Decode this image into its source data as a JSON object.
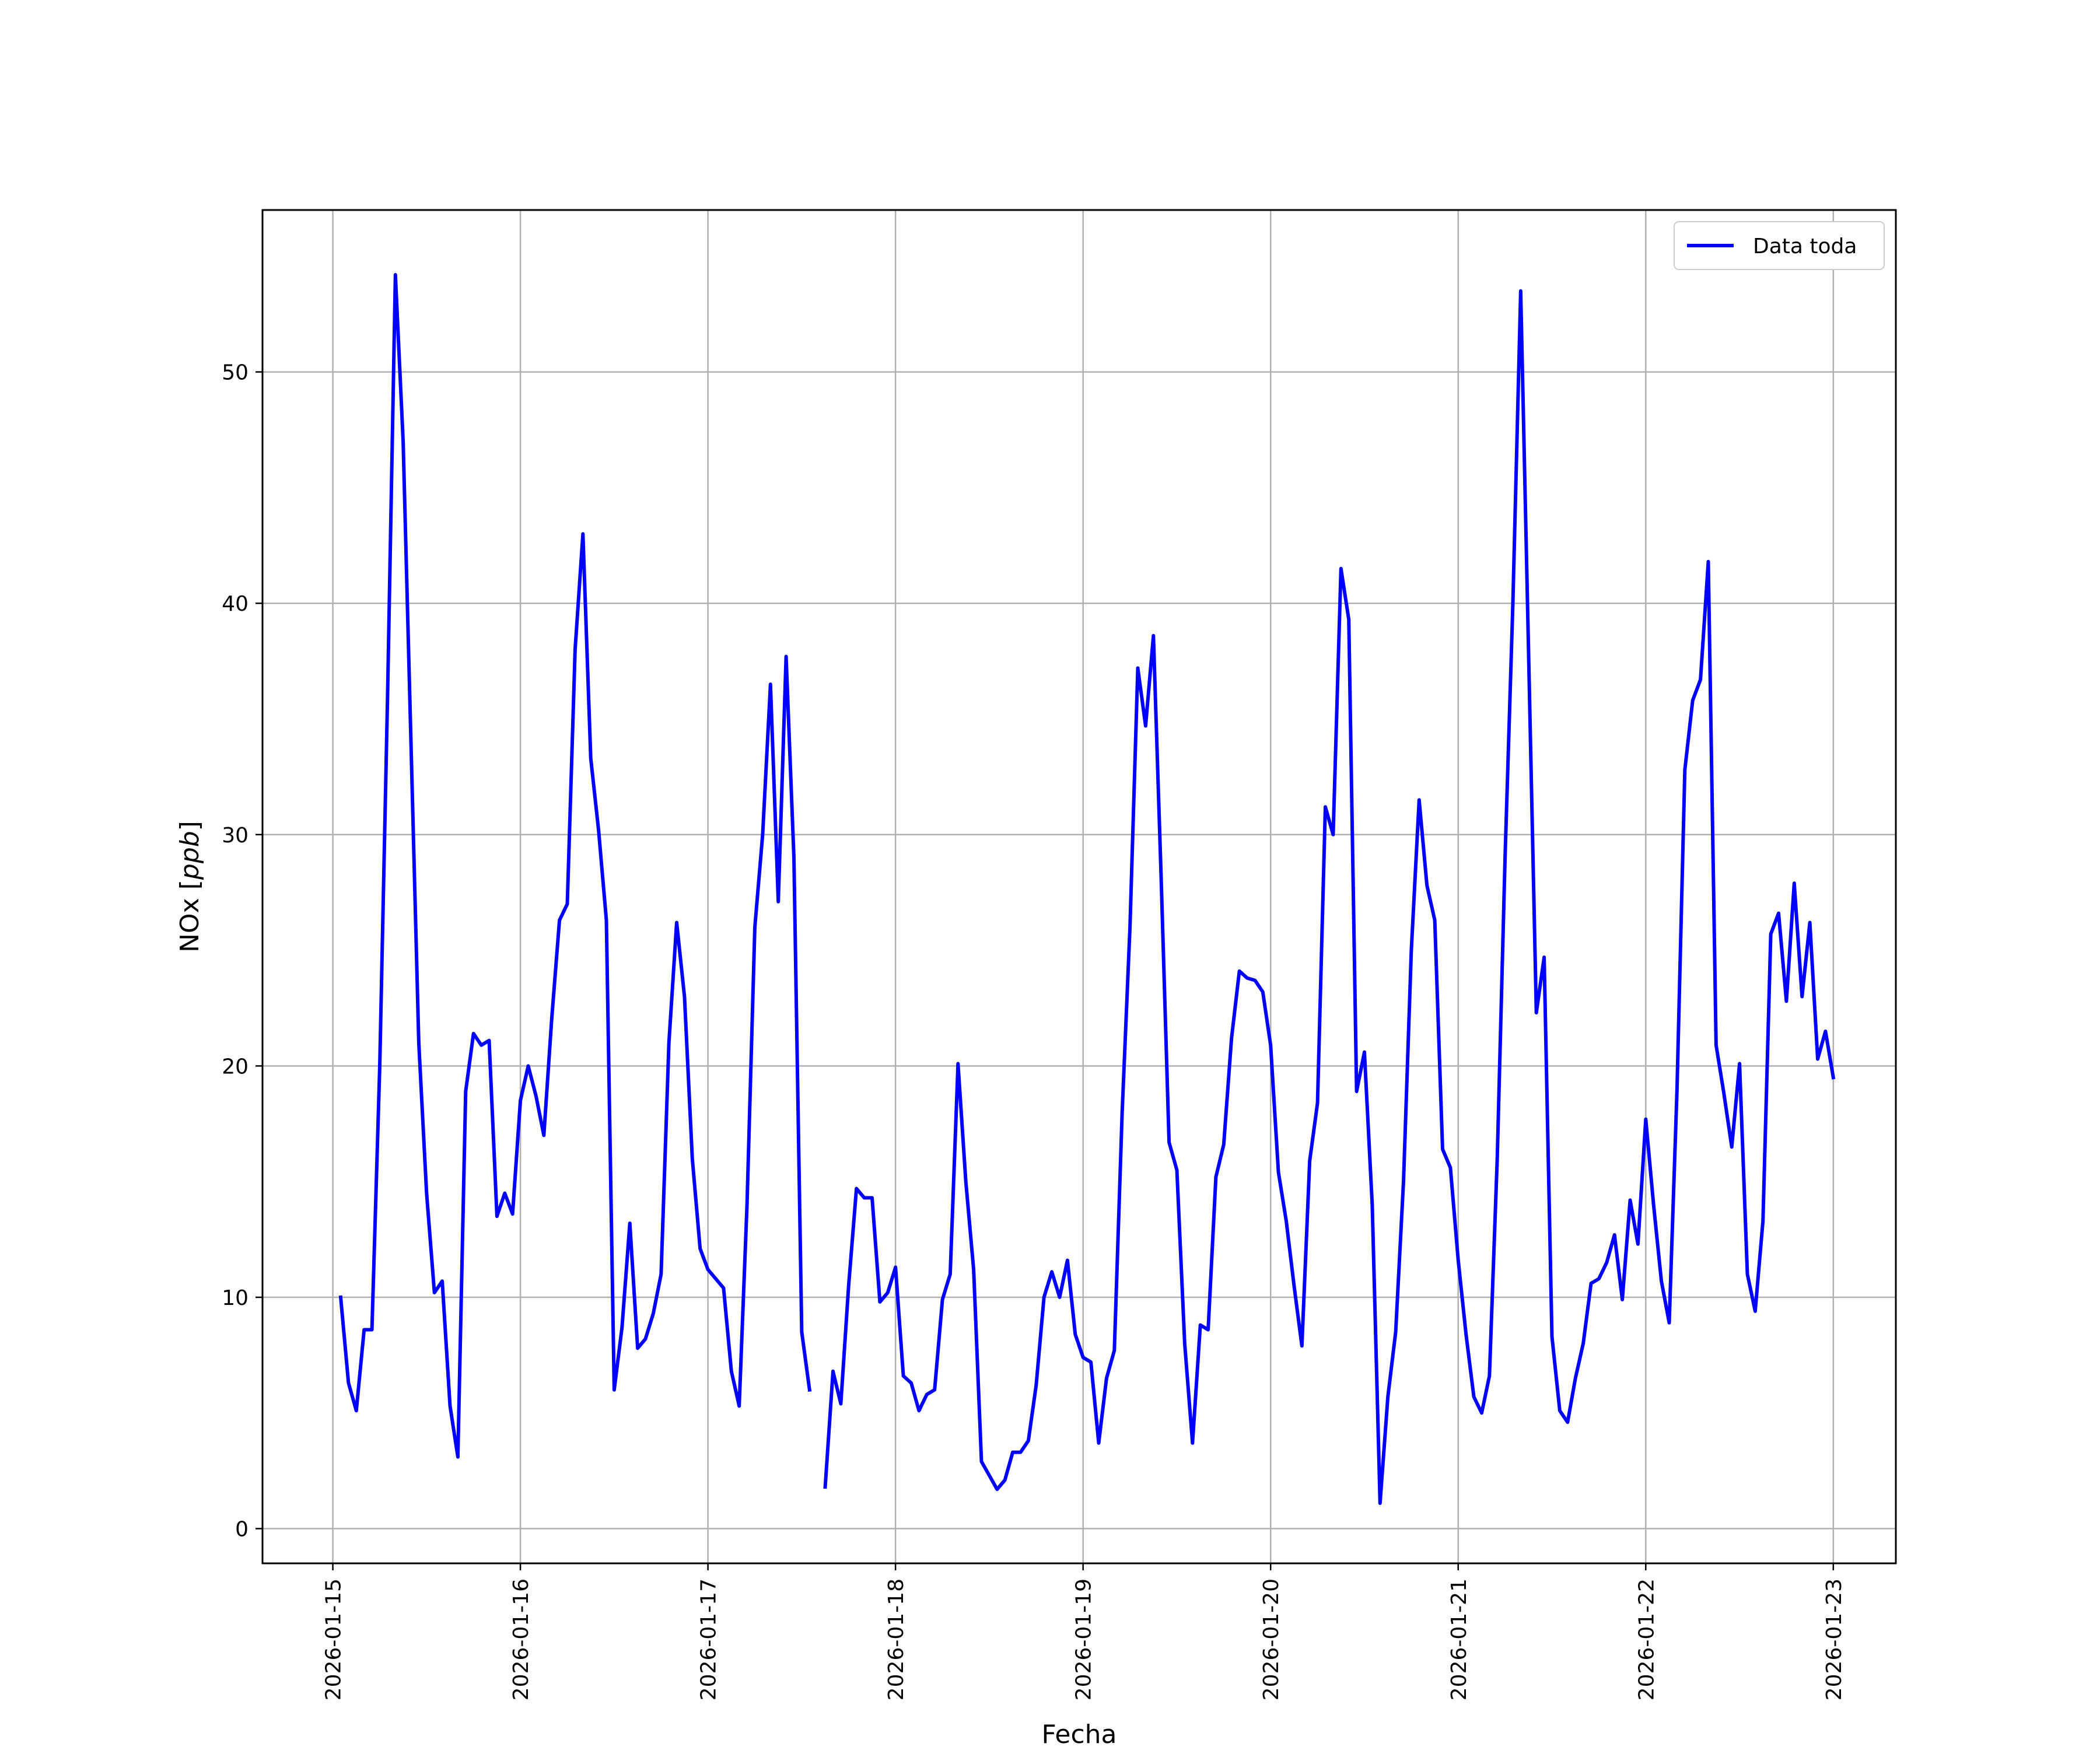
{
  "chart_data": {
    "type": "line",
    "title": "",
    "xlabel": "Fecha",
    "ylabel": "NOx [ppb]",
    "ylabel_parts": {
      "plain": "NOx [",
      "italic": "ppb",
      "close": "]"
    },
    "grid": true,
    "legend_position": "top-right",
    "xlim": [
      "2026-01-14 15:00",
      "2026-01-23 08:00"
    ],
    "ylim": [
      -1.5,
      57
    ],
    "x_ticks": [
      "2026-01-15",
      "2026-01-16",
      "2026-01-17",
      "2026-01-18",
      "2026-01-19",
      "2026-01-20",
      "2026-01-21",
      "2026-01-22",
      "2026-01-23"
    ],
    "y_ticks": [
      "0",
      "10",
      "20",
      "30",
      "40",
      "50"
    ],
    "series": [
      {
        "name": "Data toda",
        "color": "#0000ff",
        "points": [
          [
            "2026-01-15 01:00",
            10.0
          ],
          [
            "2026-01-15 02:00",
            6.3
          ],
          [
            "2026-01-15 03:00",
            5.1
          ],
          [
            "2026-01-15 04:00",
            8.6
          ],
          [
            "2026-01-15 05:00",
            8.6
          ],
          [
            "2026-01-15 06:00",
            20.0
          ],
          [
            "2026-01-15 07:00",
            36.0
          ],
          [
            "2026-01-15 08:00",
            54.2
          ],
          [
            "2026-01-15 09:00",
            47.0
          ],
          [
            "2026-01-15 10:00",
            34.0
          ],
          [
            "2026-01-15 11:00",
            21.0
          ],
          [
            "2026-01-15 12:00",
            14.5
          ],
          [
            "2026-01-15 13:00",
            10.2
          ],
          [
            "2026-01-15 14:00",
            10.7
          ],
          [
            "2026-01-15 15:00",
            5.3
          ],
          [
            "2026-01-15 16:00",
            3.1
          ],
          [
            "2026-01-15 17:00",
            18.9
          ],
          [
            "2026-01-15 18:00",
            21.4
          ],
          [
            "2026-01-15 19:00",
            20.9
          ],
          [
            "2026-01-15 20:00",
            21.1
          ],
          [
            "2026-01-15 21:00",
            13.5
          ],
          [
            "2026-01-15 22:00",
            14.5
          ],
          [
            "2026-01-15 23:00",
            13.6
          ],
          [
            "2026-01-16 00:00",
            18.5
          ],
          [
            "2026-01-16 01:00",
            20.0
          ],
          [
            "2026-01-16 02:00",
            18.7
          ],
          [
            "2026-01-16 03:00",
            17.0
          ],
          [
            "2026-01-16 04:00",
            22.0
          ],
          [
            "2026-01-16 05:00",
            26.3
          ],
          [
            "2026-01-16 06:00",
            27.0
          ],
          [
            "2026-01-16 07:00",
            38.0
          ],
          [
            "2026-01-16 08:00",
            43.0
          ],
          [
            "2026-01-16 09:00",
            33.3
          ],
          [
            "2026-01-16 10:00",
            30.2
          ],
          [
            "2026-01-16 11:00",
            26.3
          ],
          [
            "2026-01-16 12:00",
            6.0
          ],
          [
            "2026-01-16 13:00",
            8.7
          ],
          [
            "2026-01-16 14:00",
            13.2
          ],
          [
            "2026-01-16 15:00",
            7.8
          ],
          [
            "2026-01-16 16:00",
            8.2
          ],
          [
            "2026-01-16 17:00",
            9.3
          ],
          [
            "2026-01-16 18:00",
            11.0
          ],
          [
            "2026-01-16 19:00",
            21.0
          ],
          [
            "2026-01-16 20:00",
            26.2
          ],
          [
            "2026-01-16 21:00",
            23.0
          ],
          [
            "2026-01-16 22:00",
            16.0
          ],
          [
            "2026-01-16 23:00",
            12.1
          ],
          [
            "2026-01-17 00:00",
            11.2
          ],
          [
            "2026-01-17 01:00",
            10.8
          ],
          [
            "2026-01-17 02:00",
            10.4
          ],
          [
            "2026-01-17 03:00",
            6.8
          ],
          [
            "2026-01-17 04:00",
            5.3
          ],
          [
            "2026-01-17 05:00",
            14.0
          ],
          [
            "2026-01-17 06:00",
            26.0
          ],
          [
            "2026-01-17 07:00",
            30.0
          ],
          [
            "2026-01-17 08:00",
            36.5
          ],
          [
            "2026-01-17 09:00",
            27.1
          ],
          [
            "2026-01-17 10:00",
            37.7
          ],
          [
            "2026-01-17 11:00",
            29.0
          ],
          [
            "2026-01-17 12:00",
            8.5
          ],
          [
            "2026-01-17 13:00",
            6.0
          ],
          [
            "2026-01-17 14:00",
            null
          ],
          [
            "2026-01-17 15:00",
            1.8
          ],
          [
            "2026-01-17 16:00",
            6.8
          ],
          [
            "2026-01-17 17:00",
            5.4
          ],
          [
            "2026-01-17 18:00",
            10.5
          ],
          [
            "2026-01-17 19:00",
            14.7
          ],
          [
            "2026-01-17 20:00",
            14.3
          ],
          [
            "2026-01-17 21:00",
            14.3
          ],
          [
            "2026-01-17 22:00",
            9.8
          ],
          [
            "2026-01-17 23:00",
            10.2
          ],
          [
            "2026-01-18 00:00",
            11.3
          ],
          [
            "2026-01-18 01:00",
            6.6
          ],
          [
            "2026-01-18 02:00",
            6.3
          ],
          [
            "2026-01-18 03:00",
            5.1
          ],
          [
            "2026-01-18 04:00",
            5.8
          ],
          [
            "2026-01-18 05:00",
            6.0
          ],
          [
            "2026-01-18 06:00",
            9.9
          ],
          [
            "2026-01-18 07:00",
            11.0
          ],
          [
            "2026-01-18 08:00",
            20.1
          ],
          [
            "2026-01-18 09:00",
            15.0
          ],
          [
            "2026-01-18 10:00",
            11.2
          ],
          [
            "2026-01-18 11:00",
            2.9
          ],
          [
            "2026-01-18 12:00",
            2.3
          ],
          [
            "2026-01-18 13:00",
            1.7
          ],
          [
            "2026-01-18 14:00",
            2.1
          ],
          [
            "2026-01-18 15:00",
            3.3
          ],
          [
            "2026-01-18 16:00",
            3.3
          ],
          [
            "2026-01-18 17:00",
            3.8
          ],
          [
            "2026-01-18 18:00",
            6.2
          ],
          [
            "2026-01-18 19:00",
            10.0
          ],
          [
            "2026-01-18 20:00",
            11.1
          ],
          [
            "2026-01-18 21:00",
            10.0
          ],
          [
            "2026-01-18 22:00",
            11.6
          ],
          [
            "2026-01-18 23:00",
            8.4
          ],
          [
            "2026-01-19 00:00",
            7.4
          ],
          [
            "2026-01-19 01:00",
            7.2
          ],
          [
            "2026-01-19 02:00",
            3.7
          ],
          [
            "2026-01-19 03:00",
            6.5
          ],
          [
            "2026-01-19 04:00",
            7.7
          ],
          [
            "2026-01-19 05:00",
            18.0
          ],
          [
            "2026-01-19 06:00",
            26.0
          ],
          [
            "2026-01-19 07:00",
            37.2
          ],
          [
            "2026-01-19 08:00",
            34.7
          ],
          [
            "2026-01-19 09:00",
            38.6
          ],
          [
            "2026-01-19 10:00",
            28.0
          ],
          [
            "2026-01-19 11:00",
            16.7
          ],
          [
            "2026-01-19 12:00",
            15.5
          ],
          [
            "2026-01-19 13:00",
            8.0
          ],
          [
            "2026-01-19 14:00",
            3.7
          ],
          [
            "2026-01-19 15:00",
            8.8
          ],
          [
            "2026-01-19 16:00",
            8.6
          ],
          [
            "2026-01-19 17:00",
            15.2
          ],
          [
            "2026-01-19 18:00",
            16.6
          ],
          [
            "2026-01-19 19:00",
            21.2
          ],
          [
            "2026-01-19 20:00",
            24.1
          ],
          [
            "2026-01-19 21:00",
            23.8
          ],
          [
            "2026-01-19 22:00",
            23.7
          ],
          [
            "2026-01-19 23:00",
            23.2
          ],
          [
            "2026-01-20 00:00",
            20.9
          ],
          [
            "2026-01-20 01:00",
            15.4
          ],
          [
            "2026-01-20 02:00",
            13.3
          ],
          [
            "2026-01-20 03:00",
            10.5
          ],
          [
            "2026-01-20 04:00",
            7.9
          ],
          [
            "2026-01-20 05:00",
            15.9
          ],
          [
            "2026-01-20 06:00",
            18.4
          ],
          [
            "2026-01-20 07:00",
            31.2
          ],
          [
            "2026-01-20 08:00",
            30.0
          ],
          [
            "2026-01-20 09:00",
            41.5
          ],
          [
            "2026-01-20 10:00",
            39.3
          ],
          [
            "2026-01-20 11:00",
            18.9
          ],
          [
            "2026-01-20 12:00",
            20.6
          ],
          [
            "2026-01-20 13:00",
            14.0
          ],
          [
            "2026-01-20 14:00",
            1.1
          ],
          [
            "2026-01-20 15:00",
            5.7
          ],
          [
            "2026-01-20 16:00",
            8.5
          ],
          [
            "2026-01-20 17:00",
            15.0
          ],
          [
            "2026-01-20 18:00",
            25.0
          ],
          [
            "2026-01-20 19:00",
            31.5
          ],
          [
            "2026-01-20 20:00",
            27.8
          ],
          [
            "2026-01-20 21:00",
            26.3
          ],
          [
            "2026-01-20 22:00",
            16.4
          ],
          [
            "2026-01-20 23:00",
            15.6
          ],
          [
            "2026-01-21 00:00",
            11.6
          ],
          [
            "2026-01-21 01:00",
            8.4
          ],
          [
            "2026-01-21 02:00",
            5.7
          ],
          [
            "2026-01-21 03:00",
            5.0
          ],
          [
            "2026-01-21 04:00",
            6.6
          ],
          [
            "2026-01-21 05:00",
            16.0
          ],
          [
            "2026-01-21 06:00",
            29.0
          ],
          [
            "2026-01-21 07:00",
            40.0
          ],
          [
            "2026-01-21 08:00",
            53.5
          ],
          [
            "2026-01-21 09:00",
            38.0
          ],
          [
            "2026-01-21 10:00",
            22.3
          ],
          [
            "2026-01-21 11:00",
            24.7
          ],
          [
            "2026-01-21 12:00",
            8.3
          ],
          [
            "2026-01-21 13:00",
            5.1
          ],
          [
            "2026-01-21 14:00",
            4.6
          ],
          [
            "2026-01-21 15:00",
            6.5
          ],
          [
            "2026-01-21 16:00",
            8.0
          ],
          [
            "2026-01-21 17:00",
            10.6
          ],
          [
            "2026-01-21 18:00",
            10.8
          ],
          [
            "2026-01-21 19:00",
            11.5
          ],
          [
            "2026-01-21 20:00",
            12.7
          ],
          [
            "2026-01-21 21:00",
            9.9
          ],
          [
            "2026-01-21 22:00",
            14.2
          ],
          [
            "2026-01-21 23:00",
            12.3
          ],
          [
            "2026-01-22 00:00",
            17.7
          ],
          [
            "2026-01-22 01:00",
            14.0
          ],
          [
            "2026-01-22 02:00",
            10.7
          ],
          [
            "2026-01-22 03:00",
            8.9
          ],
          [
            "2026-01-22 04:00",
            19.0
          ],
          [
            "2026-01-22 05:00",
            32.8
          ],
          [
            "2026-01-22 06:00",
            35.8
          ],
          [
            "2026-01-22 07:00",
            36.7
          ],
          [
            "2026-01-22 08:00",
            41.8
          ],
          [
            "2026-01-22 09:00",
            20.9
          ],
          [
            "2026-01-22 10:00",
            18.8
          ],
          [
            "2026-01-22 11:00",
            16.5
          ],
          [
            "2026-01-22 12:00",
            20.1
          ],
          [
            "2026-01-22 13:00",
            11.0
          ],
          [
            "2026-01-22 14:00",
            9.4
          ],
          [
            "2026-01-22 15:00",
            13.3
          ],
          [
            "2026-01-22 16:00",
            25.7
          ],
          [
            "2026-01-22 17:00",
            26.6
          ],
          [
            "2026-01-22 18:00",
            22.8
          ],
          [
            "2026-01-22 19:00",
            27.9
          ],
          [
            "2026-01-22 20:00",
            23.0
          ],
          [
            "2026-01-22 21:00",
            26.2
          ],
          [
            "2026-01-22 22:00",
            20.3
          ],
          [
            "2026-01-22 23:00",
            21.5
          ],
          [
            "2026-01-23 00:00",
            19.5
          ]
        ]
      }
    ]
  }
}
